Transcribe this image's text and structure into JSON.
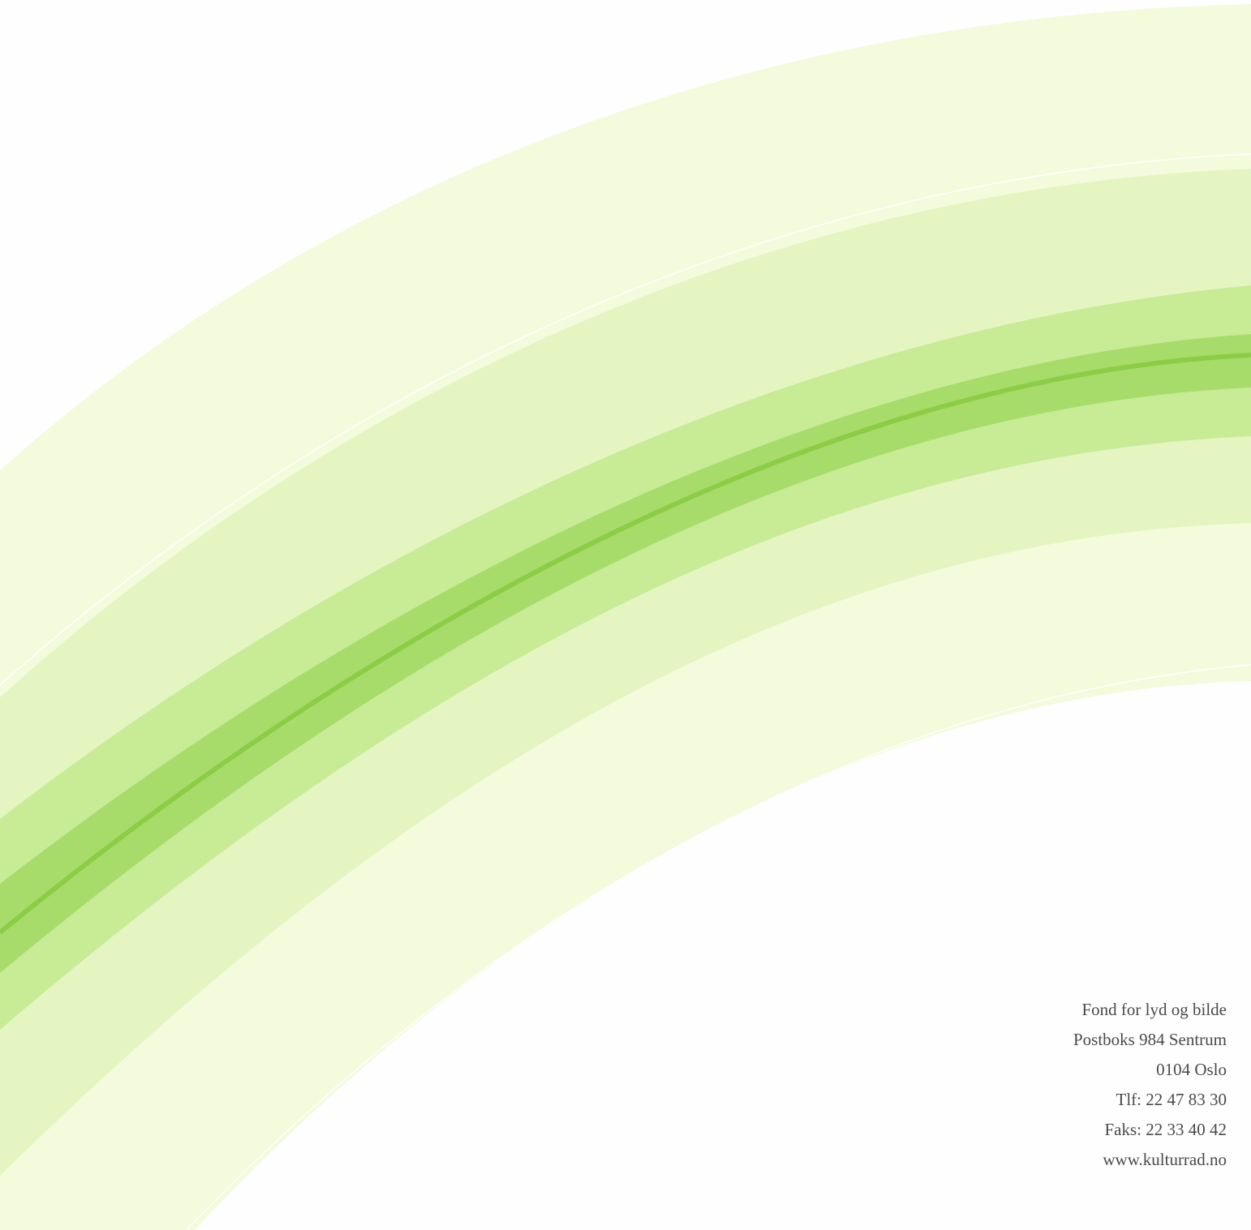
{
  "back_cover": {
    "palette": {
      "band_outer": "#f3fbdc",
      "band_light": "#e4f5c2",
      "band_mid": "#c8eb96",
      "band_strong": "#a8dc6a",
      "band_core": "#8ccd45",
      "text": "#4a4a4a"
    },
    "address": {
      "organization": "Fond for lyd og bilde",
      "postbox": "Postboks 984 Sentrum",
      "postal_code_city": "0104 Oslo",
      "phone": "Tlf: 22 47 83 30",
      "fax": "Faks: 22 33 40 42",
      "website": "www.kulturrad.no"
    }
  }
}
